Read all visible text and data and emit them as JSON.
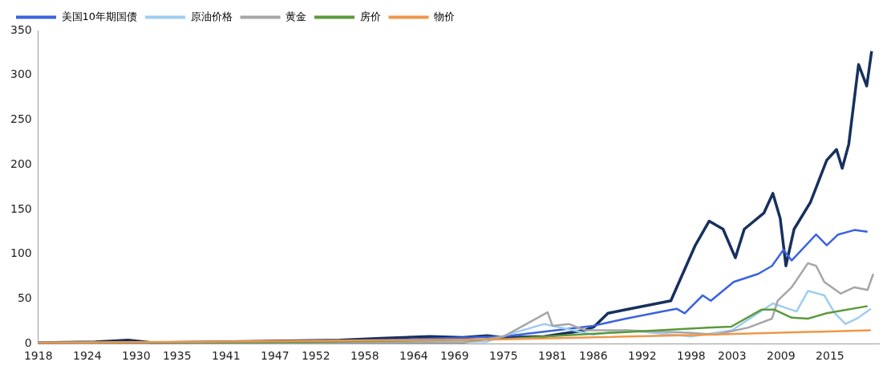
{
  "chart_data": {
    "type": "line",
    "xlim": [
      1918,
      2021
    ],
    "xticks": [
      1918,
      1924,
      1930,
      1935,
      1941,
      1947,
      1952,
      1958,
      1964,
      1969,
      1975,
      1981,
      1986,
      1992,
      1998,
      2003,
      2009,
      2015
    ],
    "ylim": [
      0,
      350
    ],
    "yticks": [
      0,
      50,
      100,
      150,
      200,
      250,
      300,
      350
    ],
    "grid": false,
    "legend": "top",
    "marker": "none",
    "line_style": "solid",
    "series": [
      {
        "color": "#17305e",
        "x": [
          1918,
          1925,
          1929,
          1932,
          1940,
          1955,
          1960,
          1966,
          1970,
          1973,
          1975,
          1980,
          1985,
          1986.1,
          1987.8,
          1990,
          1995.5,
          1998.5,
          2000.2,
          2001.9,
          2003.4,
          2004.5,
          2006.9,
          2008,
          2008.9,
          2009.6,
          2010.6,
          2012.6,
          2014.6,
          2015.8,
          2016.5,
          2017.3,
          2018.5,
          2019.5,
          2020.1
        ],
        "values": [
          1,
          2,
          4,
          1,
          2,
          4,
          6,
          8,
          7,
          9,
          7,
          8,
          15,
          19,
          34,
          38,
          48,
          110,
          137,
          128,
          96,
          128,
          146,
          168,
          140,
          87,
          128,
          158,
          205,
          217,
          196,
          223,
          312,
          288,
          327
        ]
      },
      {
        "name": "美国10年期国债",
        "color": "#3a63e0",
        "x": [
          1918,
          1940,
          1960,
          1975,
          1986,
          1990,
          1994.5,
          1996.2,
          1997.2,
          1999.4,
          2000.4,
          2003.2,
          2006.2,
          2007.9,
          2009.3,
          2010.3,
          2013.3,
          2014.6,
          2016,
          2018,
          2019.6
        ],
        "values": [
          1,
          2,
          4,
          8,
          20,
          28,
          36,
          39,
          34,
          54,
          48,
          69,
          78,
          87,
          105,
          93,
          122,
          110,
          122,
          127,
          125
        ]
      },
      {
        "name": "原油价格",
        "color": "#9fcdf0",
        "x": [
          1918,
          1973,
          1974,
          1980,
          1986,
          1990,
          1998,
          2003,
          2008,
          2009.6,
          2010.9,
          2012.3,
          2014.3,
          2015.6,
          2016.9,
          2018.3,
          2020
        ],
        "values": [
          1,
          2,
          6,
          22,
          10,
          15,
          8,
          15,
          45,
          40,
          36,
          59,
          54,
          34,
          22,
          28,
          39
        ]
      },
      {
        "name": "黄金",
        "color": "#a6a6a6",
        "x": [
          1918,
          1970,
          1975,
          1980.4,
          1981,
          1983,
          1985,
          1990,
          1998,
          2001,
          2005,
          2007.9,
          2008.6,
          2010.3,
          2012.3,
          2013.3,
          2014.3,
          2016.3,
          2018,
          2019.6,
          2020.3
        ],
        "values": [
          1,
          1,
          8,
          35,
          20,
          22,
          15,
          15,
          12,
          10,
          18,
          28,
          48,
          63,
          90,
          87,
          69,
          56,
          63,
          60,
          78
        ]
      },
      {
        "name": "房价",
        "color": "#5b9a3c",
        "x": [
          1918,
          1950,
          1975,
          1980,
          1990,
          2000,
          2002.9,
          2006.6,
          2008.2,
          2010.3,
          2012.3,
          2014.6,
          2019.6
        ],
        "values": [
          1,
          2,
          5,
          8,
          13,
          18,
          19,
          38,
          38,
          29,
          28,
          34,
          42
        ]
      },
      {
        "name": "物价",
        "color": "#f0964a",
        "x": [
          1918,
          1950,
          1975,
          2000,
          2020
        ],
        "values": [
          1,
          3,
          5,
          10,
          15
        ]
      }
    ]
  }
}
